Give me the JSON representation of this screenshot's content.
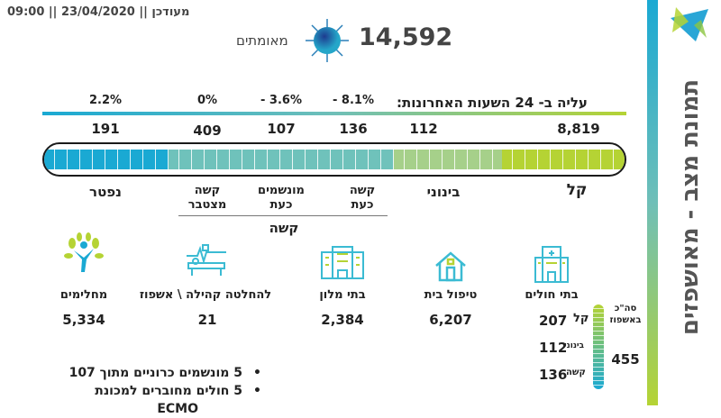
{
  "header": {
    "updated": "מעודכן || 23/04/2020 || 09:00",
    "confirmed_label": "מאומתים",
    "confirmed_value": "14,592"
  },
  "side": {
    "title": "תמונת מצב - מאושפזים",
    "logo": "star-logo"
  },
  "change": {
    "title": "עליה ב- 24 השעות האחרונות:",
    "items": [
      "2.2%",
      "0%",
      "- 3.6%",
      "- 8.1%"
    ]
  },
  "bar": {
    "values": [
      "191",
      "409",
      "107",
      "136",
      "112",
      "8,819"
    ],
    "labels": [
      "נפטר",
      "קשה\nמצטבר",
      "מונשמים\nכעת",
      "קשה\nכעת",
      "בינוני",
      "קל"
    ],
    "group_label": "קשה",
    "colors": {
      "deceased": "#1aa9d3",
      "severe": "#6fc2bb",
      "moderate": "#a6d08a",
      "mild": "#b5d334"
    }
  },
  "locations": [
    {
      "label": "מחלימים",
      "value": "5,334",
      "icon": "tree-person-icon"
    },
    {
      "label": "להחלטה קהילה \\ אשפוז",
      "value": "21",
      "icon": "hospital-bed-icon"
    },
    {
      "label": "בתי מלון",
      "value": "2,384",
      "icon": "hotel-icon"
    },
    {
      "label": "טיפול בית",
      "value": "6,207",
      "icon": "house-icon"
    },
    {
      "label": "בתי חולים",
      "value": "",
      "icon": "hospital-icon"
    }
  ],
  "hospital": {
    "mild_label": "קל",
    "mild": "207",
    "moderate_label": "בינוני",
    "moderate": "112",
    "severe_label": "קשה",
    "severe": "136",
    "total_label": "סה\"כ באשפוז",
    "total": "455"
  },
  "notes": [
    "5 מונשמים כרוניים מתוך 107",
    "5 חולים מחוברים למכונת",
    "ECMO"
  ]
}
